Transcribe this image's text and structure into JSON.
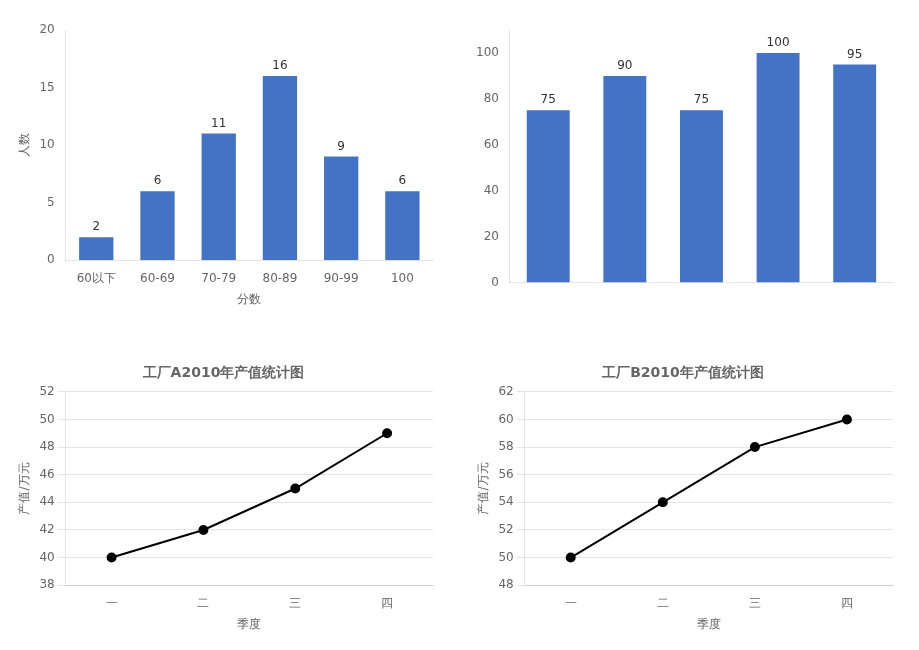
{
  "chart_data": [
    {
      "type": "bar",
      "categories": [
        "60以下",
        "60-69",
        "70-79",
        "80-89",
        "90-99",
        "100"
      ],
      "values": [
        2,
        6,
        11,
        16,
        9,
        6
      ],
      "color": "#4472c4",
      "ylim": [
        0,
        20
      ],
      "yticks": [
        0,
        5,
        10,
        15,
        20
      ],
      "ylabel": "人数",
      "xlabel": "分数",
      "data_labels": true,
      "grid": false
    },
    {
      "type": "bar",
      "categories": [
        null,
        null,
        null,
        null,
        null
      ],
      "values": [
        75,
        90,
        75,
        100,
        95
      ],
      "color": "#4472c4",
      "ylim": [
        0,
        110
      ],
      "yticks": [
        0,
        20,
        40,
        60,
        80,
        100
      ],
      "data_labels": true,
      "grid": false
    },
    {
      "type": "line",
      "title": "工厂A2010年产值统计图",
      "categories": [
        "一",
        "二",
        "三",
        "四"
      ],
      "values": [
        40,
        42,
        45,
        49
      ],
      "color": "black",
      "marker": "o",
      "line_style": "solid",
      "ylim": [
        38,
        52
      ],
      "yticks": [
        38,
        40,
        42,
        44,
        46,
        48,
        50,
        52
      ],
      "ylabel": "产值/万元",
      "xlabel": "季度",
      "grid": "y"
    },
    {
      "type": "line",
      "title": "工厂B2010年产值统计图",
      "categories": [
        "一",
        "二",
        "三",
        "四"
      ],
      "values": [
        50,
        54,
        58,
        60
      ],
      "color": "black",
      "marker": "o",
      "line_style": "solid",
      "ylim": [
        48,
        62
      ],
      "yticks": [
        48,
        50,
        52,
        54,
        56,
        58,
        60,
        62
      ],
      "ylabel": "产值/万元",
      "xlabel": "季度",
      "grid": "y"
    }
  ]
}
